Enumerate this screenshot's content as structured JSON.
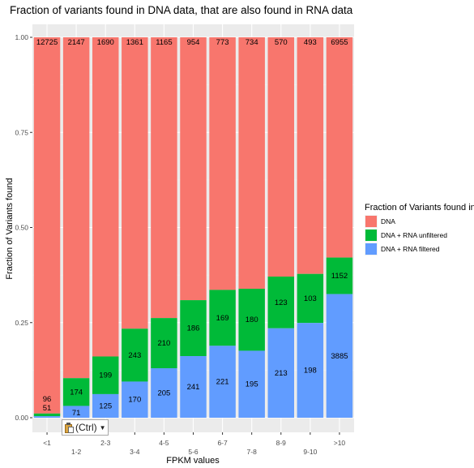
{
  "chart_data": {
    "type": "bar",
    "stacked": true,
    "title": "Fraction of variants found in DNA data, that are also found in RNA data",
    "xlabel": "FPKM values",
    "ylabel": "Fraction of Variants found",
    "ylim": [
      0,
      1
    ],
    "yticks": [
      "0.00",
      "0.25",
      "0.50",
      "0.75",
      "1.00"
    ],
    "categories": [
      "<1",
      "1-2",
      "2-3",
      "3-4",
      "4-5",
      "5-6",
      "6-7",
      "7-8",
      "8-9",
      "9-10",
      ">10"
    ],
    "legend": {
      "title": "Fraction of Variants found in",
      "placement": "right"
    },
    "grid": true,
    "series": [
      {
        "name": "DNA",
        "color": "#F8766D",
        "labels": [
          "12725",
          "2147",
          "1690",
          "1361",
          "1165",
          "954",
          "773",
          "734",
          "570",
          "493",
          "6955"
        ]
      },
      {
        "name": "DNA + RNA unfiltered",
        "color": "#00BA38",
        "top": [
          0.011,
          0.104,
          0.161,
          0.234,
          0.262,
          0.309,
          0.336,
          0.339,
          0.371,
          0.378,
          0.421
        ],
        "labels": [
          "96",
          "174",
          "199",
          "243",
          "210",
          "186",
          "169",
          "180",
          "123",
          "103",
          "1152"
        ]
      },
      {
        "name": "DNA + RNA filtered",
        "color": "#619CFF",
        "top": [
          0.004,
          0.031,
          0.062,
          0.095,
          0.13,
          0.162,
          0.189,
          0.176,
          0.235,
          0.249,
          0.325
        ],
        "labels": [
          "51",
          "71",
          "125",
          "170",
          "205",
          "241",
          "221",
          "195",
          "213",
          "198",
          "3885"
        ]
      }
    ]
  },
  "paste_options": {
    "label": "(Ctrl)",
    "icon": "clipboard-icon"
  }
}
